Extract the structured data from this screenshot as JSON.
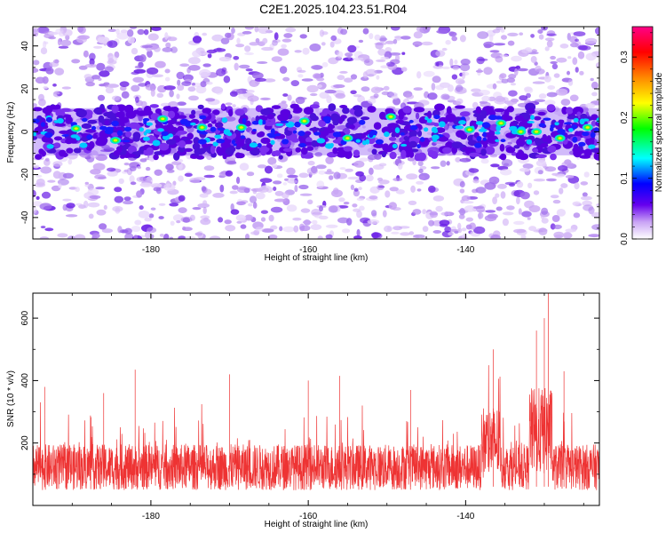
{
  "title": "C2E1.2025.104.23.51.R04",
  "colors": {
    "snr_line": "#ee3333",
    "band_core": "#5500dd",
    "background_noise": "#c9a3f5"
  },
  "chart_data": [
    {
      "id": "spectrogram",
      "type": "heatmap",
      "xlabel": "Height of straight line (km)",
      "ylabel": "Frequency (Hz)",
      "xlim": [
        -195,
        -123
      ],
      "ylim": [
        -50,
        49
      ],
      "xticks": [
        -180,
        -160,
        -140
      ],
      "yticks": [
        -40,
        -20,
        0,
        20,
        40
      ],
      "grid": false,
      "signal_band_hz": [
        -10,
        10
      ],
      "colorbar": {
        "label": "Normalized spectral amplitude",
        "range": [
          0.0,
          0.35
        ],
        "ticks": [
          "0.0",
          "0.1",
          "0.2",
          "0.3"
        ],
        "colormap": [
          "#ffffff",
          "#c9a3f5",
          "#6600ee",
          "#0000ff",
          "#00ffff",
          "#00ff00",
          "#ffff00",
          "#ff8800",
          "#ff0000",
          "#ff0088"
        ]
      },
      "hot_spots": [
        {
          "x": -189.5,
          "y": 1.5
        },
        {
          "x": -184.5,
          "y": -4
        },
        {
          "x": -178.5,
          "y": 6
        },
        {
          "x": -173.5,
          "y": 2
        },
        {
          "x": -168.5,
          "y": 2
        },
        {
          "x": -160.5,
          "y": 5
        },
        {
          "x": -155,
          "y": -3
        },
        {
          "x": -149.5,
          "y": 7
        },
        {
          "x": -139.5,
          "y": 1
        },
        {
          "x": -135.5,
          "y": 4
        },
        {
          "x": -133,
          "y": 0
        },
        {
          "x": -131,
          "y": 0
        },
        {
          "x": -128,
          "y": -3
        },
        {
          "x": -124.5,
          "y": 2
        }
      ]
    },
    {
      "id": "snr",
      "type": "line",
      "xlabel": "Height of straight line (km)",
      "ylabel": "SNR (10 * v/v)",
      "xlim": [
        -195,
        -123
      ],
      "ylim": [
        0,
        680
      ],
      "xticks": [
        -180,
        -160,
        -140
      ],
      "yticks": [
        200,
        400,
        600
      ],
      "grid": false,
      "series": [
        {
          "baseline_mean": 140,
          "peaks": [
            {
              "x": -193.5,
              "y": 380
            },
            {
              "x": -186,
              "y": 360
            },
            {
              "x": -182,
              "y": 435
            },
            {
              "x": -170,
              "y": 420
            },
            {
              "x": -160,
              "y": 400
            },
            {
              "x": -156,
              "y": 415
            },
            {
              "x": -147,
              "y": 370
            },
            {
              "x": -136.5,
              "y": 500
            },
            {
              "x": -131,
              "y": 560
            },
            {
              "x": -130,
              "y": 600
            },
            {
              "x": -129.5,
              "y": 680
            },
            {
              "x": -127.5,
              "y": 430
            }
          ]
        }
      ]
    }
  ]
}
